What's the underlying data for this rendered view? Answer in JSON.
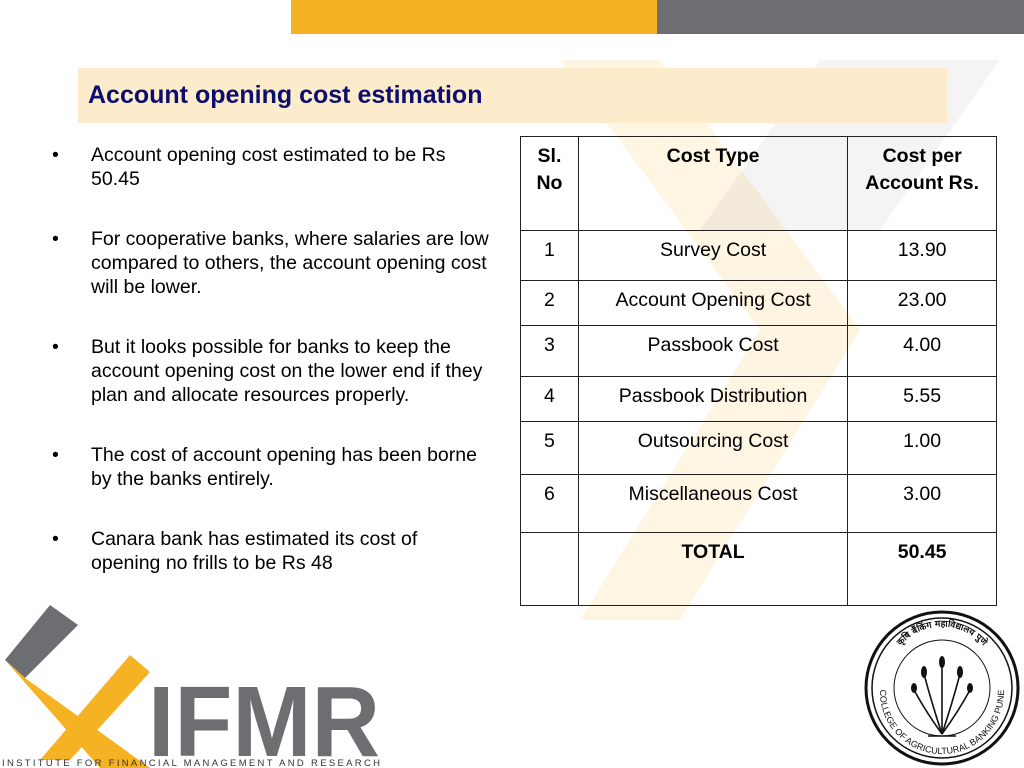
{
  "header": {
    "title": "Account opening cost estimation"
  },
  "bullets": [
    "Account opening cost estimated to be Rs 50.45",
    "For cooperative banks, where salaries are low compared to others, the account opening cost will be lower.",
    "But it looks possible for banks to keep the account opening cost on the lower end if they plan and allocate resources properly.",
    "The cost of account opening has been borne by the banks entirely.",
    "Canara bank has estimated its cost of opening no frills to be Rs 48"
  ],
  "table": {
    "headers": [
      "Sl. No",
      "Cost Type",
      "Cost per Account Rs."
    ],
    "rows": [
      [
        "1",
        "Survey Cost",
        "13.90"
      ],
      [
        "2",
        "Account Opening Cost",
        "23.00"
      ],
      [
        "3",
        "Passbook Cost",
        "4.00"
      ],
      [
        "4",
        "Passbook Distribution",
        "5.55"
      ],
      [
        "5",
        "Outsourcing Cost",
        "1.00"
      ],
      [
        "6",
        "Miscellaneous Cost",
        "3.00"
      ]
    ],
    "total": [
      "",
      "TOTAL",
      "50.45"
    ]
  },
  "logos": {
    "ifmr_text": "IFMR",
    "ifmr_tagline": "INSTITUTE FOR FINANCIAL MANAGEMENT AND RESEARCH",
    "seal_text": "COLLEGE OF AGRICULTURAL BANKING PUNE",
    "seal_hindi": "कृषि बैंकिंग महाविद्यालय पुणे"
  },
  "colors": {
    "accent_yellow": "#f5b324",
    "accent_grey": "#6d6e71",
    "title_band": "#fdeccb",
    "title_text": "#0d0d6e"
  }
}
